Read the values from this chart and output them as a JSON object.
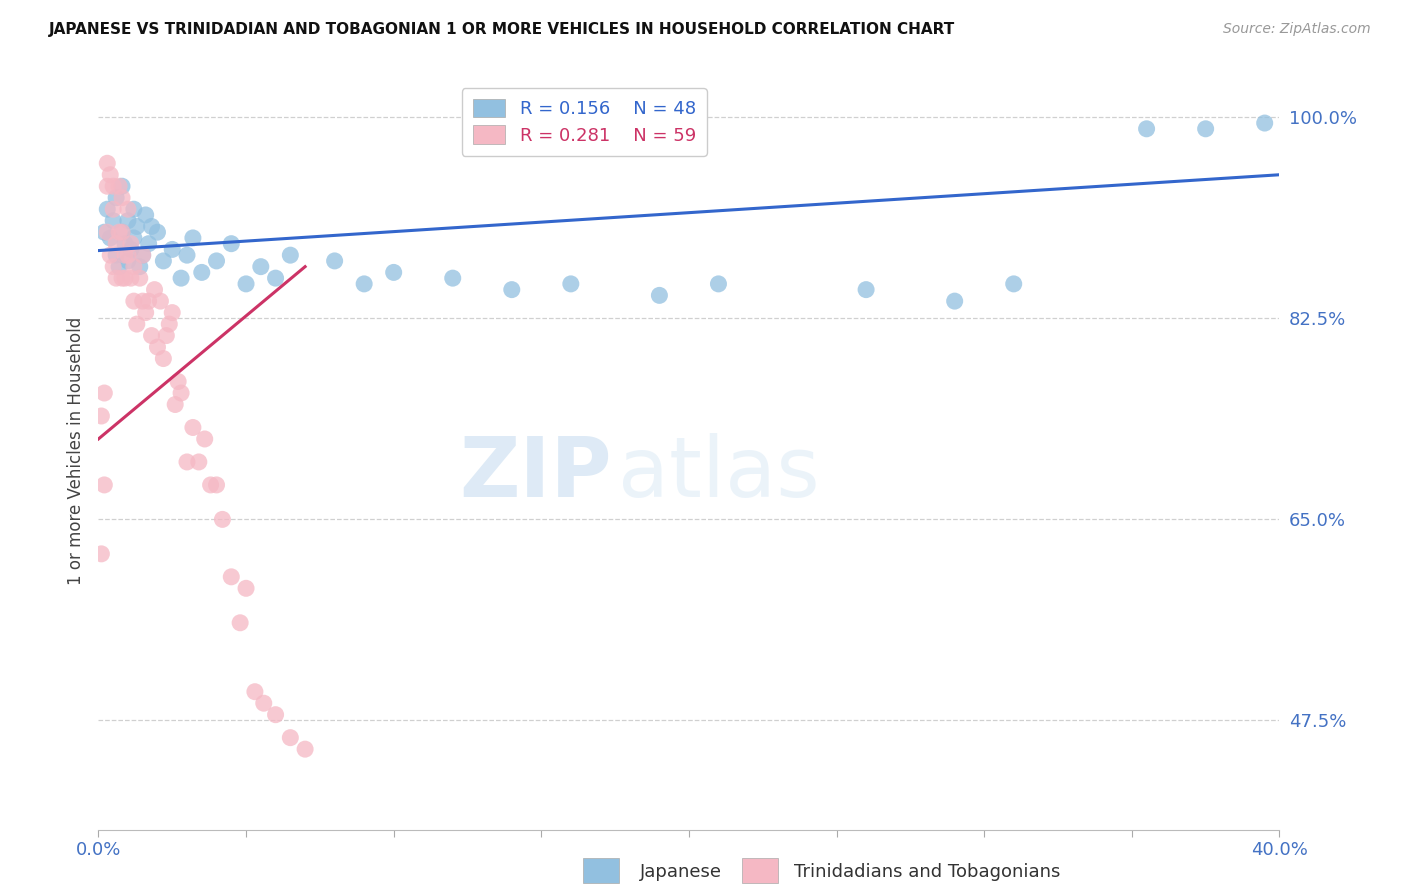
{
  "title": "JAPANESE VS TRINIDADIAN AND TOBAGONIAN 1 OR MORE VEHICLES IN HOUSEHOLD CORRELATION CHART",
  "source": "Source: ZipAtlas.com",
  "ylabel": "1 or more Vehicles in Household",
  "xlim": [
    0.0,
    0.4
  ],
  "ylim": [
    0.38,
    1.04
  ],
  "xtick_values": [
    0.0,
    0.05,
    0.1,
    0.15,
    0.2,
    0.25,
    0.3,
    0.35,
    0.4
  ],
  "ytick_right_labels": [
    "100.0%",
    "82.5%",
    "65.0%",
    "47.5%"
  ],
  "ytick_right_values": [
    1.0,
    0.825,
    0.65,
    0.475
  ],
  "grid_color": "#d0d0d0",
  "background_color": "#ffffff",
  "blue_color": "#92c0e0",
  "blue_line_color": "#3366cc",
  "pink_color": "#f5b8c4",
  "pink_line_color": "#cc3366",
  "R_blue": 0.156,
  "N_blue": 48,
  "R_pink": 0.281,
  "N_pink": 59,
  "legend_label_blue": "Japanese",
  "legend_label_pink": "Trinidadians and Tobagonians",
  "watermark_zip": "ZIP",
  "watermark_atlas": "atlas",
  "japanese_x": [
    0.002,
    0.003,
    0.004,
    0.005,
    0.006,
    0.006,
    0.007,
    0.008,
    0.008,
    0.009,
    0.01,
    0.01,
    0.011,
    0.012,
    0.012,
    0.013,
    0.014,
    0.015,
    0.016,
    0.017,
    0.018,
    0.02,
    0.022,
    0.025,
    0.028,
    0.03,
    0.032,
    0.035,
    0.04,
    0.045,
    0.05,
    0.055,
    0.06,
    0.065,
    0.08,
    0.09,
    0.1,
    0.12,
    0.14,
    0.16,
    0.19,
    0.21,
    0.26,
    0.29,
    0.31,
    0.355,
    0.375,
    0.395
  ],
  "japanese_y": [
    0.9,
    0.92,
    0.895,
    0.91,
    0.88,
    0.93,
    0.87,
    0.9,
    0.94,
    0.89,
    0.91,
    0.875,
    0.885,
    0.895,
    0.92,
    0.905,
    0.87,
    0.88,
    0.915,
    0.89,
    0.905,
    0.9,
    0.875,
    0.885,
    0.86,
    0.88,
    0.895,
    0.865,
    0.875,
    0.89,
    0.855,
    0.87,
    0.86,
    0.88,
    0.875,
    0.855,
    0.865,
    0.86,
    0.85,
    0.855,
    0.845,
    0.855,
    0.85,
    0.84,
    0.855,
    0.99,
    0.99,
    0.995
  ],
  "trinidadian_x": [
    0.001,
    0.001,
    0.002,
    0.002,
    0.003,
    0.003,
    0.003,
    0.004,
    0.004,
    0.005,
    0.005,
    0.005,
    0.006,
    0.006,
    0.007,
    0.007,
    0.008,
    0.008,
    0.008,
    0.009,
    0.009,
    0.01,
    0.01,
    0.011,
    0.011,
    0.012,
    0.012,
    0.013,
    0.014,
    0.015,
    0.015,
    0.016,
    0.017,
    0.018,
    0.019,
    0.02,
    0.021,
    0.022,
    0.023,
    0.024,
    0.025,
    0.026,
    0.027,
    0.028,
    0.03,
    0.032,
    0.034,
    0.036,
    0.038,
    0.04,
    0.042,
    0.045,
    0.048,
    0.05,
    0.053,
    0.056,
    0.06,
    0.065,
    0.07
  ],
  "trinidadian_y": [
    0.62,
    0.74,
    0.68,
    0.76,
    0.9,
    0.94,
    0.96,
    0.88,
    0.95,
    0.92,
    0.87,
    0.94,
    0.89,
    0.86,
    0.9,
    0.94,
    0.86,
    0.9,
    0.93,
    0.88,
    0.86,
    0.88,
    0.92,
    0.86,
    0.89,
    0.84,
    0.87,
    0.82,
    0.86,
    0.84,
    0.88,
    0.83,
    0.84,
    0.81,
    0.85,
    0.8,
    0.84,
    0.79,
    0.81,
    0.82,
    0.83,
    0.75,
    0.77,
    0.76,
    0.7,
    0.73,
    0.7,
    0.72,
    0.68,
    0.68,
    0.65,
    0.6,
    0.56,
    0.59,
    0.5,
    0.49,
    0.48,
    0.46,
    0.45
  ],
  "blue_trend_x": [
    0.0,
    0.4
  ],
  "blue_trend_y": [
    0.884,
    0.95
  ],
  "pink_trend_x": [
    0.0,
    0.07
  ],
  "pink_trend_y": [
    0.72,
    0.87
  ]
}
